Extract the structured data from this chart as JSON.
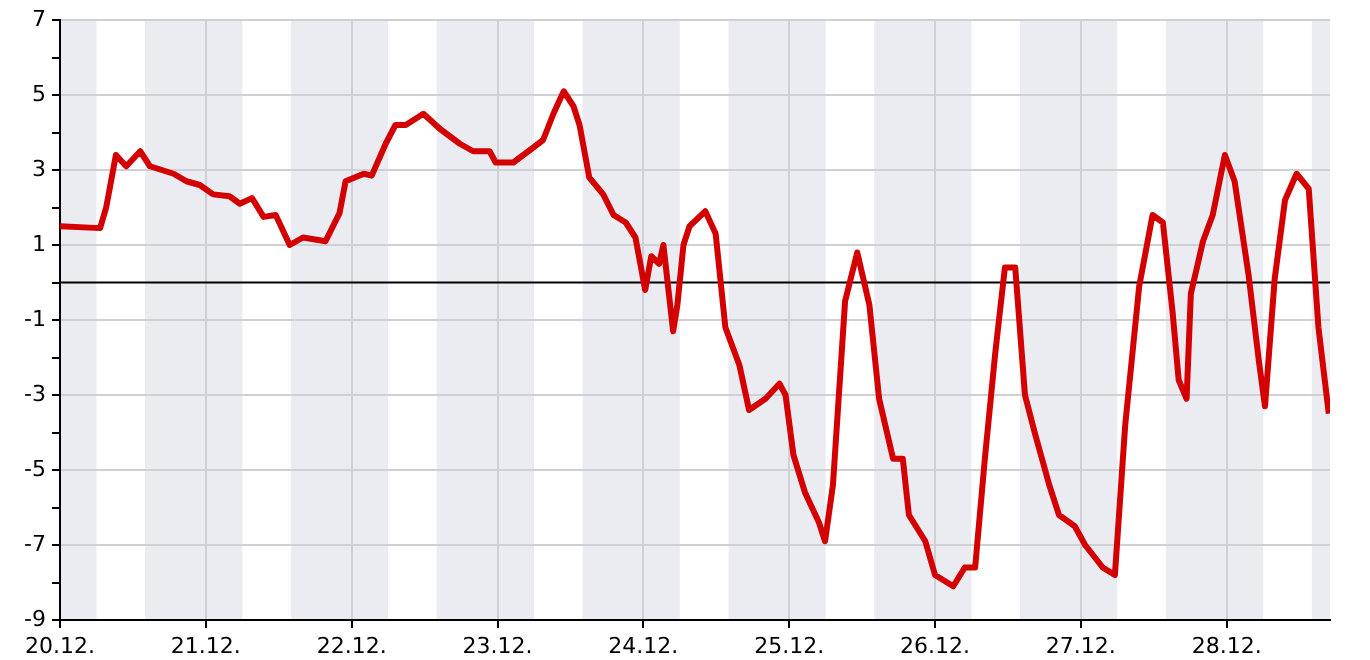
{
  "chart_data": {
    "type": "line",
    "xlim": [
      "--12-20T00:00",
      "--12-28T17:00"
    ],
    "ylim": [
      -9,
      7
    ],
    "xticks": [
      {
        "value": "--12-20",
        "label": "20.12."
      },
      {
        "value": "--12-21",
        "label": "21.12."
      },
      {
        "value": "--12-22",
        "label": "22.12."
      },
      {
        "value": "--12-23",
        "label": "23.12."
      },
      {
        "value": "--12-24",
        "label": "24.12."
      },
      {
        "value": "--12-25",
        "label": "25.12."
      },
      {
        "value": "--12-26",
        "label": "26.12."
      },
      {
        "value": "--12-27",
        "label": "27.12."
      },
      {
        "value": "--12-28",
        "label": "28.12."
      }
    ],
    "yticks": [
      -9,
      {
        "value": -8,
        "label": null
      },
      -7,
      {
        "value": -6,
        "label": null
      },
      -5,
      {
        "value": -4,
        "label": null
      },
      -3,
      {
        "value": -2,
        "label": null
      },
      -1,
      {
        "value": 0,
        "label": null
      },
      1,
      {
        "value": 2,
        "label": null
      },
      3,
      {
        "value": 4,
        "label": null
      },
      5,
      {
        "value": 6,
        "label": null
      },
      7
    ],
    "grid": true,
    "marker": "none",
    "line_style": "solid",
    "bands": [
      {
        "axis": "x",
        "from": "--12-20T00:00",
        "to": "--12-20T06:00",
        "color": "#ebecf2"
      },
      {
        "axis": "x",
        "from": "--12-20T14:00",
        "to": "--12-21T06:00",
        "color": "#ebecf2"
      },
      {
        "axis": "x",
        "from": "--12-21T14:00",
        "to": "--12-22T06:00",
        "color": "#ebecf2"
      },
      {
        "axis": "x",
        "from": "--12-22T14:00",
        "to": "--12-23T06:00",
        "color": "#ebecf2"
      },
      {
        "axis": "x",
        "from": "--12-23T14:00",
        "to": "--12-24T06:00",
        "color": "#ebecf2"
      },
      {
        "axis": "x",
        "from": "--12-24T14:00",
        "to": "--12-25T06:00",
        "color": "#ebecf2"
      },
      {
        "axis": "x",
        "from": "--12-25T14:00",
        "to": "--12-26T06:00",
        "color": "#ebecf2"
      },
      {
        "axis": "x",
        "from": "--12-26T14:00",
        "to": "--12-27T06:00",
        "color": "#ebecf2"
      },
      {
        "axis": "x",
        "from": "--12-27T14:00",
        "to": "--12-28T06:00",
        "color": "#ebecf2"
      },
      {
        "axis": "x",
        "from": "--12-28T14:00",
        "to": "--12-28T17:00",
        "color": "#ebecf2"
      }
    ],
    "ref_lines": [
      {
        "axis": "y",
        "value": 0,
        "color": "#000000"
      }
    ],
    "series": [
      {
        "color": "#d40000",
        "x": [
          "--12-20T00:00",
          "--12-20T06:36",
          "--12-20T07:36",
          "--12-20T09:12",
          "--12-20T10:54",
          "--12-20T13:12",
          "--12-20T14:48",
          "--12-20T18:42",
          "--12-20T20:48",
          "--12-20T23:00",
          "--12-21T01:12",
          "--12-21T03:54",
          "--12-21T05:36",
          "--12-21T07:36",
          "--12-21T09:30",
          "--12-21T11:30",
          "--12-21T13:48",
          "--12-21T16:00",
          "--12-21T19:42",
          "--12-21T22:00",
          "--12-21T23:00",
          "--12-22T02:00",
          "--12-22T03:18",
          "--12-22T05:36",
          "--12-22T07:12",
          "--12-22T08:54",
          "--12-22T11:48",
          "--12-22T14:30",
          "--12-22T17:48",
          "--12-22T20:00",
          "--12-22T22:42",
          "--12-22T23:42",
          "--12-23T02:36",
          "--12-23T05:54",
          "--12-23T07:30",
          "--12-23T09:12",
          "--12-23T10:54",
          "--12-23T12:30",
          "--12-23T13:30",
          "--12-23T15:06",
          "--12-23T17:24",
          "--12-23T19:06",
          "--12-23T21:06",
          "--12-23T22:42",
          "--12-24T00:18",
          "--12-24T01:18",
          "--12-24T02:36",
          "--12-24T03:18",
          "--12-24T04:54",
          "--12-24T05:36",
          "--12-24T06:36",
          "--12-24T07:36",
          "--12-24T10:12",
          "--12-24T11:54",
          "--12-24T13:30",
          "--12-24T15:48",
          "--12-24T17:24",
          "--12-24T20:06",
          "--12-24T22:24",
          "--12-24T23:24",
          "--12-25T00:42",
          "--12-25T02:36",
          "--12-25T04:54",
          "--12-25T05:54",
          "--12-25T07:12",
          "--12-25T09:12",
          "--12-25T11:12",
          "--12-25T13:12",
          "--12-25T14:48",
          "--12-25T17:06",
          "--12-25T18:42",
          "--12-25T19:42",
          "--12-25T22:24",
          "--12-26T00:00",
          "--12-26T03:00",
          "--12-26T04:54",
          "--12-26T06:36",
          "--12-26T08:12",
          "--12-26T09:54",
          "--12-26T11:30",
          "--12-26T13:12",
          "--12-26T14:48",
          "--12-26T16:24",
          "--12-26T18:48",
          "--12-26T20:24",
          "--12-26T23:00",
          "--12-27T00:42",
          "--12-27T03:36",
          "--12-27T05:36",
          "--12-27T07:18",
          "--12-27T09:36",
          "--12-27T11:48",
          "--12-27T13:30",
          "--12-27T15:06",
          "--12-27T16:06",
          "--12-27T17:24",
          "--12-27T18:06",
          "--12-27T20:06",
          "--12-27T21:42",
          "--12-27T23:42",
          "--12-28T01:18",
          "--12-28T03:36",
          "--12-28T05:18",
          "--12-28T06:18",
          "--12-28T07:54",
          "--12-28T09:36",
          "--12-28T11:30",
          "--12-28T13:30",
          "--12-28T15:06",
          "--12-28T16:48"
        ],
        "values": [
          1.5,
          1.45,
          2.0,
          3.4,
          3.1,
          3.5,
          3.1,
          2.9,
          2.7,
          2.6,
          2.35,
          2.3,
          2.1,
          2.25,
          1.75,
          1.8,
          1.0,
          1.2,
          1.1,
          1.85,
          2.7,
          2.9,
          2.85,
          3.7,
          4.2,
          4.2,
          4.5,
          4.1,
          3.7,
          3.5,
          3.5,
          3.2,
          3.2,
          3.6,
          3.8,
          4.5,
          5.1,
          4.7,
          4.2,
          2.8,
          2.35,
          1.8,
          1.6,
          1.2,
          -0.2,
          0.7,
          0.5,
          1.0,
          -1.3,
          -0.6,
          1.0,
          1.5,
          1.9,
          1.3,
          -1.2,
          -2.2,
          -3.4,
          -3.1,
          -2.7,
          -3.0,
          -4.6,
          -5.6,
          -6.4,
          -6.9,
          -5.4,
          -0.5,
          0.8,
          -0.6,
          -3.1,
          -4.7,
          -4.7,
          -6.2,
          -6.9,
          -7.8,
          -8.1,
          -7.6,
          -7.6,
          -4.7,
          -1.9,
          0.4,
          0.4,
          -3.0,
          -4.0,
          -5.4,
          -6.2,
          -6.5,
          -7.0,
          -7.6,
          -7.8,
          -3.8,
          -0.1,
          1.8,
          1.6,
          -0.8,
          -2.6,
          -3.1,
          -0.3,
          1.1,
          1.8,
          3.4,
          2.7,
          0.2,
          -2.1,
          -3.3,
          0.1,
          2.2,
          2.9,
          2.5,
          -1.2,
          -3.5
        ]
      }
    ]
  }
}
